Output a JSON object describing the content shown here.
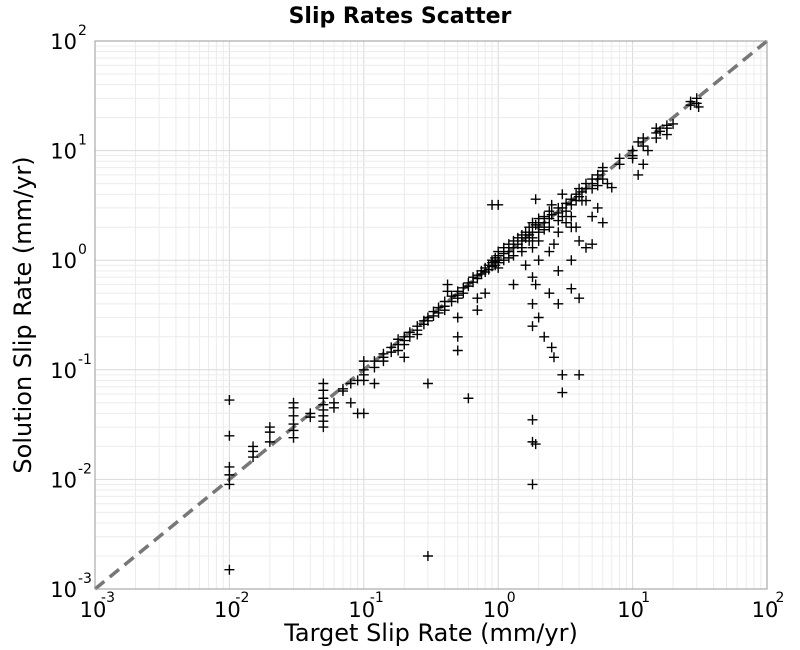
{
  "chart_data": {
    "type": "scatter",
    "title": "Slip Rates Scatter",
    "xlabel": "Target Slip Rate (mm/yr)",
    "ylabel": "Solution Slip Rate (mm/yr)",
    "x_scale": "log",
    "y_scale": "log",
    "xlim": [
      0.001,
      100
    ],
    "ylim": [
      0.001,
      100
    ],
    "grid": true,
    "marker": "+",
    "reference_line": {
      "style": "dashed",
      "color": "#777777",
      "from": [
        0.001,
        0.001
      ],
      "to": [
        100,
        100
      ]
    },
    "x_ticks": [
      {
        "base": "10",
        "exp": "-3"
      },
      {
        "base": "10",
        "exp": "-2"
      },
      {
        "base": "10",
        "exp": "-1"
      },
      {
        "base": "10",
        "exp": "0"
      },
      {
        "base": "10",
        "exp": "1"
      },
      {
        "base": "10",
        "exp": "2"
      }
    ],
    "y_ticks": [
      {
        "base": "10",
        "exp": "-3"
      },
      {
        "base": "10",
        "exp": "-2"
      },
      {
        "base": "10",
        "exp": "-1"
      },
      {
        "base": "10",
        "exp": "0"
      },
      {
        "base": "10",
        "exp": "1"
      },
      {
        "base": "10",
        "exp": "2"
      }
    ],
    "points": [
      [
        0.01,
        0.053
      ],
      [
        0.01,
        0.025
      ],
      [
        0.01,
        0.013
      ],
      [
        0.01,
        0.011
      ],
      [
        0.01,
        0.009
      ],
      [
        0.01,
        0.0015
      ],
      [
        0.015,
        0.02
      ],
      [
        0.015,
        0.018
      ],
      [
        0.015,
        0.016
      ],
      [
        0.02,
        0.03
      ],
      [
        0.02,
        0.027
      ],
      [
        0.02,
        0.022
      ],
      [
        0.03,
        0.05
      ],
      [
        0.03,
        0.045
      ],
      [
        0.03,
        0.038
      ],
      [
        0.03,
        0.032
      ],
      [
        0.03,
        0.028
      ],
      [
        0.03,
        0.024
      ],
      [
        0.04,
        0.04
      ],
      [
        0.04,
        0.037
      ],
      [
        0.05,
        0.075
      ],
      [
        0.05,
        0.065
      ],
      [
        0.05,
        0.055
      ],
      [
        0.05,
        0.048
      ],
      [
        0.05,
        0.043
      ],
      [
        0.05,
        0.038
      ],
      [
        0.05,
        0.034
      ],
      [
        0.05,
        0.03
      ],
      [
        0.06,
        0.05
      ],
      [
        0.06,
        0.045
      ],
      [
        0.07,
        0.067
      ],
      [
        0.07,
        0.064
      ],
      [
        0.08,
        0.075
      ],
      [
        0.08,
        0.05
      ],
      [
        0.09,
        0.08
      ],
      [
        0.09,
        0.04
      ],
      [
        0.1,
        0.12
      ],
      [
        0.1,
        0.1
      ],
      [
        0.1,
        0.09
      ],
      [
        0.1,
        0.08
      ],
      [
        0.1,
        0.04
      ],
      [
        0.12,
        0.12
      ],
      [
        0.12,
        0.105
      ],
      [
        0.12,
        0.075
      ],
      [
        0.14,
        0.14
      ],
      [
        0.14,
        0.13
      ],
      [
        0.14,
        0.12
      ],
      [
        0.16,
        0.16
      ],
      [
        0.16,
        0.145
      ],
      [
        0.18,
        0.19
      ],
      [
        0.18,
        0.17
      ],
      [
        0.18,
        0.15
      ],
      [
        0.2,
        0.2
      ],
      [
        0.2,
        0.185
      ],
      [
        0.2,
        0.17
      ],
      [
        0.2,
        0.13
      ],
      [
        0.22,
        0.22
      ],
      [
        0.22,
        0.2
      ],
      [
        0.25,
        0.25
      ],
      [
        0.25,
        0.23
      ],
      [
        0.25,
        0.21
      ],
      [
        0.28,
        0.28
      ],
      [
        0.28,
        0.26
      ],
      [
        0.3,
        0.3
      ],
      [
        0.3,
        0.28
      ],
      [
        0.3,
        0.075
      ],
      [
        0.3,
        0.002
      ],
      [
        0.33,
        0.34
      ],
      [
        0.33,
        0.31
      ],
      [
        0.36,
        0.37
      ],
      [
        0.36,
        0.33
      ],
      [
        0.4,
        0.42
      ],
      [
        0.4,
        0.38
      ],
      [
        0.4,
        0.35
      ],
      [
        0.42,
        0.6
      ],
      [
        0.42,
        0.52
      ],
      [
        0.45,
        0.47
      ],
      [
        0.45,
        0.42
      ],
      [
        0.5,
        0.52
      ],
      [
        0.5,
        0.48
      ],
      [
        0.5,
        0.45
      ],
      [
        0.5,
        0.3
      ],
      [
        0.5,
        0.2
      ],
      [
        0.5,
        0.15
      ],
      [
        0.55,
        0.56
      ],
      [
        0.55,
        0.5
      ],
      [
        0.6,
        0.62
      ],
      [
        0.6,
        0.58
      ],
      [
        0.6,
        0.055
      ],
      [
        0.65,
        0.7
      ],
      [
        0.65,
        0.63
      ],
      [
        0.7,
        0.73
      ],
      [
        0.7,
        0.68
      ],
      [
        0.7,
        0.45
      ],
      [
        0.7,
        0.35
      ],
      [
        0.75,
        0.8
      ],
      [
        0.75,
        0.75
      ],
      [
        0.8,
        0.85
      ],
      [
        0.8,
        0.78
      ],
      [
        0.8,
        0.5
      ],
      [
        0.85,
        0.9
      ],
      [
        0.85,
        0.82
      ],
      [
        0.9,
        1.0
      ],
      [
        0.9,
        0.95
      ],
      [
        0.9,
        0.88
      ],
      [
        0.9,
        3.2
      ],
      [
        0.95,
        1.05
      ],
      [
        0.95,
        0.98
      ],
      [
        0.95,
        0.9
      ],
      [
        1.0,
        1.2
      ],
      [
        1.0,
        1.1
      ],
      [
        1.0,
        1.0
      ],
      [
        1.0,
        0.95
      ],
      [
        1.0,
        0.85
      ],
      [
        1.0,
        3.2
      ],
      [
        1.1,
        1.3
      ],
      [
        1.1,
        1.15
      ],
      [
        1.1,
        1.0
      ],
      [
        1.2,
        1.4
      ],
      [
        1.2,
        1.2
      ],
      [
        1.2,
        1.05
      ],
      [
        1.3,
        1.5
      ],
      [
        1.3,
        1.3
      ],
      [
        1.3,
        1.1
      ],
      [
        1.3,
        0.6
      ],
      [
        1.4,
        1.6
      ],
      [
        1.4,
        1.4
      ],
      [
        1.5,
        1.7
      ],
      [
        1.5,
        1.5
      ],
      [
        1.5,
        1.3
      ],
      [
        1.5,
        1.2
      ],
      [
        1.6,
        1.8
      ],
      [
        1.6,
        1.6
      ],
      [
        1.6,
        0.9
      ],
      [
        1.7,
        2.0
      ],
      [
        1.7,
        1.7
      ],
      [
        1.7,
        1.5
      ],
      [
        1.8,
        2.2
      ],
      [
        1.8,
        1.8
      ],
      [
        1.8,
        1.6
      ],
      [
        1.8,
        1.3
      ],
      [
        1.8,
        0.7
      ],
      [
        1.8,
        0.4
      ],
      [
        1.8,
        0.25
      ],
      [
        1.8,
        0.035
      ],
      [
        1.8,
        0.022
      ],
      [
        1.8,
        0.009
      ],
      [
        1.9,
        3.6
      ],
      [
        1.9,
        2.1
      ],
      [
        1.9,
        0.6
      ],
      [
        1.9,
        0.021
      ],
      [
        2.0,
        2.4
      ],
      [
        2.0,
        2.2
      ],
      [
        2.0,
        2.0
      ],
      [
        2.0,
        1.8
      ],
      [
        2.0,
        1.5
      ],
      [
        2.0,
        1.0
      ],
      [
        2.0,
        0.3
      ],
      [
        2.2,
        2.5
      ],
      [
        2.2,
        2.2
      ],
      [
        2.2,
        1.9
      ],
      [
        2.2,
        0.2
      ],
      [
        2.4,
        2.8
      ],
      [
        2.4,
        2.4
      ],
      [
        2.4,
        2.0
      ],
      [
        2.4,
        1.2
      ],
      [
        2.4,
        0.5
      ],
      [
        2.5,
        3.2
      ],
      [
        2.5,
        2.6
      ],
      [
        2.5,
        0.16
      ],
      [
        2.6,
        1.4
      ],
      [
        2.6,
        0.13
      ],
      [
        2.8,
        3.0
      ],
      [
        2.8,
        2.7
      ],
      [
        2.8,
        2.3
      ],
      [
        2.8,
        1.8
      ],
      [
        2.8,
        0.8
      ],
      [
        2.8,
        0.4
      ],
      [
        3.0,
        4.0
      ],
      [
        3.0,
        3.0
      ],
      [
        3.0,
        2.5
      ],
      [
        3.0,
        0.09
      ],
      [
        3.0,
        0.062
      ],
      [
        3.2,
        3.3
      ],
      [
        3.2,
        2.8
      ],
      [
        3.2,
        2.2
      ],
      [
        3.5,
        3.6
      ],
      [
        3.5,
        3.2
      ],
      [
        3.5,
        2.5
      ],
      [
        3.5,
        2.0
      ],
      [
        3.5,
        1.0
      ],
      [
        3.5,
        0.55
      ],
      [
        3.8,
        4.0
      ],
      [
        3.8,
        3.5
      ],
      [
        3.8,
        2.0
      ],
      [
        4.0,
        4.5
      ],
      [
        4.0,
        3.8
      ],
      [
        4.0,
        1.5
      ],
      [
        4.0,
        0.45
      ],
      [
        4.0,
        0.09
      ],
      [
        4.2,
        4.2
      ],
      [
        4.2,
        3.5
      ],
      [
        4.5,
        5.0
      ],
      [
        4.5,
        4.5
      ],
      [
        4.5,
        3.5
      ],
      [
        4.5,
        1.3
      ],
      [
        5.0,
        5.5
      ],
      [
        5.0,
        5.0
      ],
      [
        5.0,
        4.5
      ],
      [
        5.0,
        2.5
      ],
      [
        5.0,
        1.4
      ],
      [
        5.5,
        6.0
      ],
      [
        5.5,
        5.5
      ],
      [
        5.5,
        4.8
      ],
      [
        5.5,
        3.0
      ],
      [
        6.0,
        7.0
      ],
      [
        6.0,
        6.5
      ],
      [
        6.0,
        5.5
      ],
      [
        6.0,
        2.2
      ],
      [
        6.5,
        5.0
      ],
      [
        7.0,
        4.6
      ],
      [
        8.0,
        8.5
      ],
      [
        8.0,
        7.5
      ],
      [
        10.0,
        10.0
      ],
      [
        10.0,
        9.0
      ],
      [
        10.0,
        8.5
      ],
      [
        11.0,
        12.0
      ],
      [
        11.0,
        6.0
      ],
      [
        12.0,
        13.0
      ],
      [
        12.0,
        11.0
      ],
      [
        12.0,
        7.5
      ],
      [
        13.0,
        10.0
      ],
      [
        15.0,
        16.0
      ],
      [
        15.0,
        14.5
      ],
      [
        15.0,
        13.0
      ],
      [
        16.0,
        15.0
      ],
      [
        18.0,
        17.0
      ],
      [
        18.0,
        16.0
      ],
      [
        18.0,
        14.0
      ],
      [
        20.0,
        17.5
      ],
      [
        27.0,
        28.0
      ],
      [
        27.0,
        26.0
      ],
      [
        30.0,
        30.0
      ],
      [
        30.0,
        27.0
      ],
      [
        31.0,
        25.0
      ]
    ]
  }
}
